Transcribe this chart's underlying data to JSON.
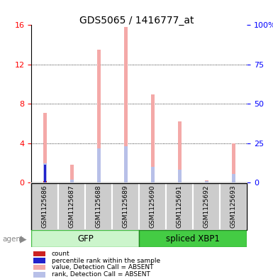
{
  "title": "GDS5065 / 1416777_at",
  "samples": [
    "GSM1125686",
    "GSM1125687",
    "GSM1125688",
    "GSM1125689",
    "GSM1125690",
    "GSM1125691",
    "GSM1125692",
    "GSM1125693"
  ],
  "value_absent": [
    7.1,
    1.8,
    13.5,
    15.8,
    9.0,
    6.2,
    0.25,
    4.0
  ],
  "rank_absent": [
    2.0,
    0.35,
    3.5,
    3.7,
    1.6,
    1.3,
    0.2,
    0.9
  ],
  "count_present": [
    0.15,
    0.0,
    0.0,
    0.0,
    0.0,
    0.0,
    0.0,
    0.0
  ],
  "rank_present": [
    1.8,
    0.0,
    0.0,
    0.0,
    0.0,
    0.0,
    0.0,
    0.0
  ],
  "ylim_left": [
    0,
    16
  ],
  "ylim_right": [
    0,
    100
  ],
  "yticks_left": [
    0,
    4,
    8,
    12,
    16
  ],
  "yticks_right": [
    0,
    25,
    50,
    75,
    100
  ],
  "ytick_labels_right": [
    "0",
    "25",
    "50",
    "75",
    "100%"
  ],
  "color_value_absent": "#f4a9a8",
  "color_rank_absent": "#b8c0e8",
  "color_count": "#cc2222",
  "color_rank_present": "#2222cc",
  "bar_width": 0.12,
  "gfp_color": "#ccf5cc",
  "gfp_edge": "#44bb44",
  "xbp_color": "#44cc44",
  "xbp_edge": "#228822",
  "label_gray": "#cccccc",
  "label_edge": "#ffffff",
  "title_fontsize": 10,
  "label_fontsize": 6.5
}
